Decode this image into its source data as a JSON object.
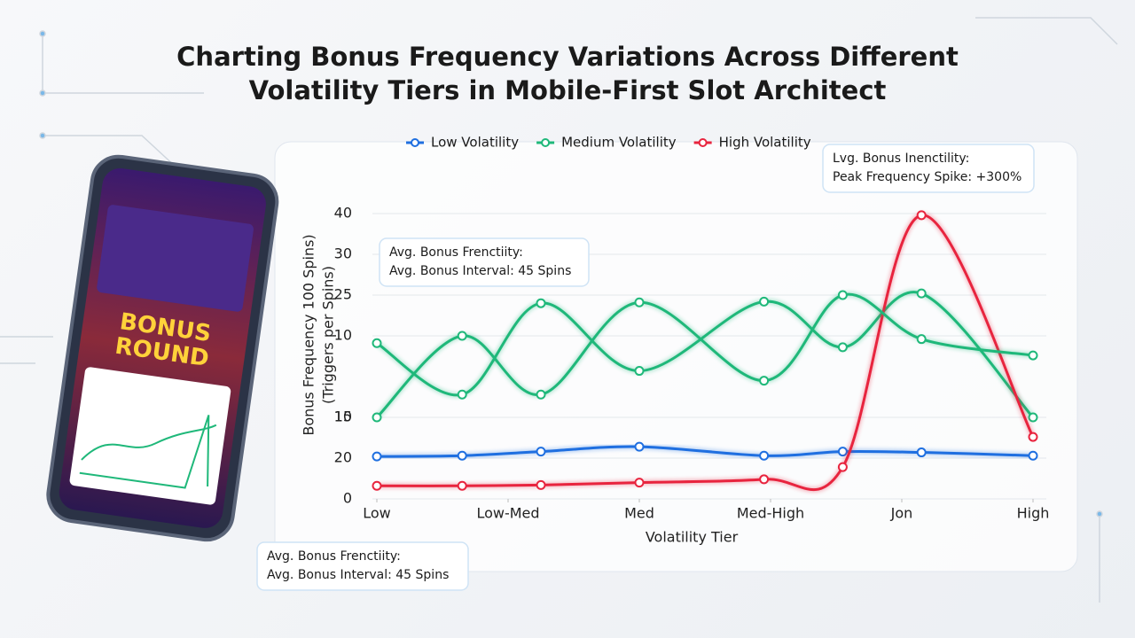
{
  "title": [
    "Charting Bonus Frequency Variations Across Different",
    "Volatility Tiers in Mobile-First Slot Architect"
  ],
  "phone": {
    "banner": [
      "BONUS",
      "ROUND"
    ]
  },
  "chart_data": {
    "type": "line",
    "y_label": [
      "Bonus Frequency 100 Spins)",
      "(Triggers per Spins)"
    ],
    "x_label": "Volatility Tier",
    "x": [
      0,
      0.65,
      1.25,
      2,
      2.95,
      3.55,
      4.15,
      5
    ],
    "xlim": [
      0,
      5
    ],
    "xticks": [
      {
        "value": 0,
        "label": "Low"
      },
      {
        "value": 1,
        "label": "Low-Med"
      },
      {
        "value": 2,
        "label": "Med"
      },
      {
        "value": 3,
        "label": "Med-High"
      },
      {
        "value": 4,
        "label": "Jon"
      },
      {
        "value": 5,
        "label": "High"
      }
    ],
    "ylim": [
      0,
      35
    ],
    "yticks": [
      0,
      {
        "value": 5,
        "label": "20"
      },
      {
        "value": 10,
        "label": "15"
      },
      10,
      {
        "value": 20,
        "label": "10"
      },
      {
        "value": 25,
        "label": "25"
      },
      {
        "value": 30,
        "label": "30"
      },
      {
        "value": 35,
        "label": "40"
      }
    ],
    "grid": true,
    "series": [
      {
        "name": "Low Volatility",
        "color": "#1f6fe0",
        "values": [
          5.2,
          5.3,
          5.8,
          6.4,
          5.3,
          5.8,
          5.7,
          5.3
        ]
      },
      {
        "name": "Medium Volatility",
        "color": "#1fb87a",
        "values": [
          19.1,
          12.8,
          24.0,
          15.7,
          24.2,
          18.6,
          25.2,
          10.0
        ]
      },
      {
        "name": "High Volatility",
        "color": "#e8243e",
        "values": [
          1.6,
          1.6,
          1.7,
          2.0,
          2.4,
          3.9,
          34.8,
          7.6
        ]
      },
      {
        "color": "#1fb87a",
        "values": [
          10.0,
          20.0,
          12.8,
          24.1,
          14.5,
          25.0,
          19.6,
          17.6
        ]
      }
    ],
    "annotations": [
      [
        "Avg. Bonus Frenctiity:",
        "Avg. Bonus Interval: 45 Spins"
      ],
      [
        "Lvg. Bonus Inenctility:",
        "Peak Frequency Spike: +300%"
      ],
      [
        "Avg. Bonus Frenctiity:",
        "Avg. Bonus Interval: 45 Spins"
      ]
    ]
  }
}
